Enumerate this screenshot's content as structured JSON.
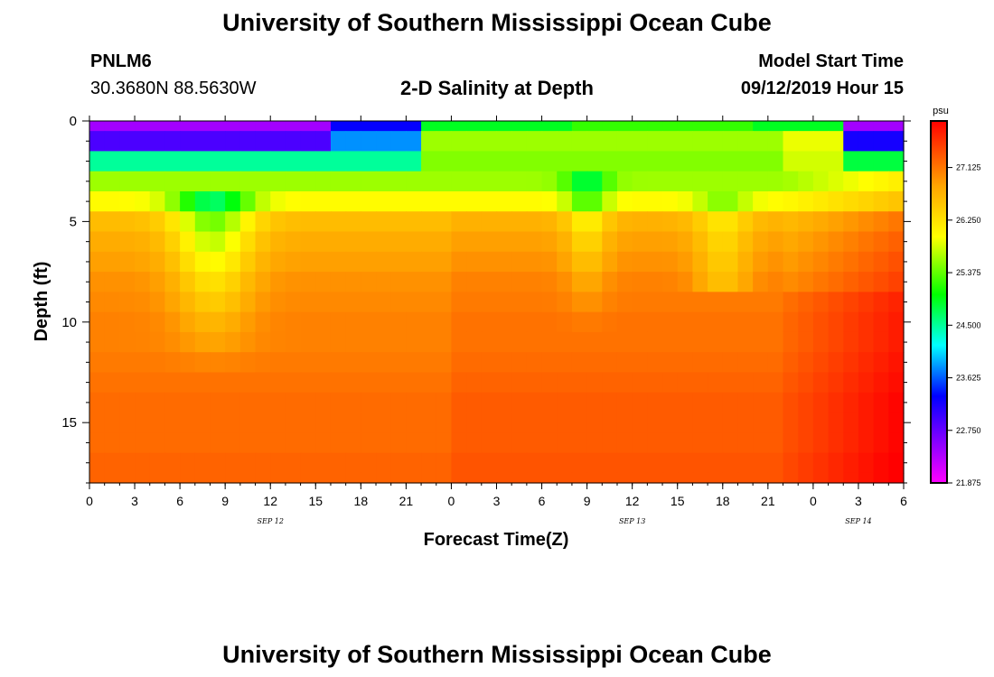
{
  "header": {
    "title_top": "University of Southern Mississippi Ocean Cube",
    "title_bottom": "University of Southern Mississippi Ocean Cube",
    "station": "PNLM6",
    "coords": "30.3680N 88.5630W",
    "plot_title": "2-D Salinity at Depth",
    "model_label": "Model Start Time",
    "model_time": "09/12/2019 Hour 15"
  },
  "chart_data": {
    "type": "heatmap",
    "title": "2-D Salinity at Depth",
    "xlabel": "Forecast Time(Z)",
    "ylabel": "Depth (ft)",
    "x_ticks": [
      "0",
      "3",
      "6",
      "9",
      "12",
      "15",
      "18",
      "21",
      "0",
      "3",
      "6",
      "9",
      "12",
      "15",
      "18",
      "21",
      "0",
      "3",
      "6"
    ],
    "x_range_hours": [
      0,
      54
    ],
    "date_labels": [
      {
        "label": "SEP 12",
        "hour": 12
      },
      {
        "label": "SEP 13",
        "hour": 36
      },
      {
        "label": "SEP 14",
        "hour": 51
      }
    ],
    "y_ticks": [
      "0",
      "5",
      "10",
      "15"
    ],
    "y_range_ft": [
      0,
      18
    ],
    "colorbar": {
      "unit": "psu",
      "range": [
        21.875,
        27.9
      ],
      "tick_labels": [
        "27.125",
        "26.250",
        "25.375",
        "24.500",
        "23.625",
        "22.750",
        "21.875"
      ],
      "tick_values": [
        27.125,
        26.25,
        25.375,
        24.5,
        23.625,
        22.75,
        21.875
      ]
    },
    "depth_layers_ft": [
      0,
      0.5,
      1.5,
      2.5,
      3.5,
      4.5,
      5.5,
      6.5,
      7.5,
      8.5,
      9.5,
      10.5,
      11.5,
      12.5,
      13.5,
      14.5,
      15.5,
      16.5,
      17.5
    ],
    "base_salinity_by_depth": [
      22.4,
      22.9,
      24.5,
      25.6,
      26.0,
      26.6,
      26.75,
      26.85,
      26.95,
      27.0,
      27.05,
      27.05,
      27.1,
      27.15,
      27.2,
      27.2,
      27.2,
      27.25,
      27.25
    ]
  }
}
